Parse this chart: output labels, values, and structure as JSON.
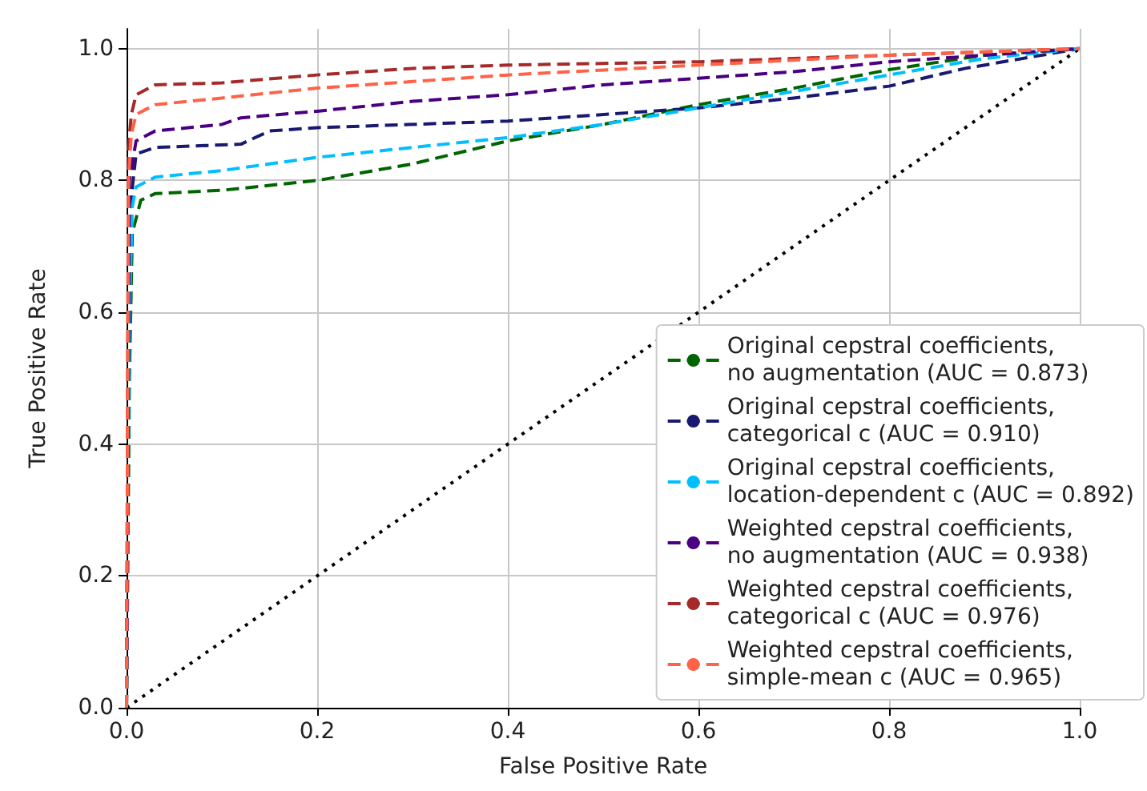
{
  "chart_data": {
    "type": "line",
    "xlabel": "False Positive Rate",
    "ylabel": "True Positive Rate",
    "xlim": [
      0,
      1
    ],
    "ylim": [
      0,
      1.03
    ],
    "xticks": [
      {
        "value": 0,
        "label": "0.0"
      },
      {
        "value": 0.2,
        "label": "0.2"
      },
      {
        "value": 0.4,
        "label": "0.4"
      },
      {
        "value": 0.6,
        "label": "0.6"
      },
      {
        "value": 0.8,
        "label": "0.8"
      },
      {
        "value": 1,
        "label": "1.0"
      }
    ],
    "yticks": [
      {
        "value": 0,
        "label": "0.0"
      },
      {
        "value": 0.2,
        "label": "0.2"
      },
      {
        "value": 0.4,
        "label": "0.4"
      },
      {
        "value": 0.6,
        "label": "0.6"
      },
      {
        "value": 0.8,
        "label": "0.8"
      },
      {
        "value": 1,
        "label": "1.0"
      }
    ],
    "grid": true,
    "legend": "bottom right",
    "marker": "none",
    "series": [
      {
        "name": "Original cepstral coefficients,\nno augmentation (AUC = 0.873)",
        "color": "#006400",
        "line_style": "dashed",
        "x": [
          0,
          0.003,
          0.006,
          0.015,
          0.03,
          0.1,
          0.2,
          0.3,
          0.4,
          0.5,
          0.6,
          0.7,
          0.8,
          0.9,
          1
        ],
        "values": [
          0,
          0.5,
          0.72,
          0.77,
          0.78,
          0.785,
          0.8,
          0.825,
          0.86,
          0.885,
          0.915,
          0.94,
          0.968,
          0.99,
          1
        ]
      },
      {
        "name": "Original cepstral coefficients,\ncategorical c (AUC = 0.910)",
        "color": "#191970",
        "line_style": "dashed",
        "x": [
          0,
          0.003,
          0.01,
          0.03,
          0.12,
          0.15,
          0.2,
          0.4,
          0.6,
          0.7,
          0.8,
          0.88,
          1
        ],
        "values": [
          0,
          0.75,
          0.84,
          0.85,
          0.855,
          0.875,
          0.88,
          0.89,
          0.91,
          0.925,
          0.943,
          0.97,
          1
        ]
      },
      {
        "name": "Original cepstral coefficients,\nlocation-dependent c (AUC = 0.892)",
        "color": "#00bfff",
        "line_style": "dashed",
        "x": [
          0,
          0.003,
          0.006,
          0.01,
          0.03,
          0.1,
          0.2,
          0.3,
          0.4,
          0.5,
          0.6,
          0.7,
          0.8,
          0.9,
          1
        ],
        "values": [
          0,
          0.6,
          0.76,
          0.79,
          0.805,
          0.815,
          0.835,
          0.85,
          0.865,
          0.885,
          0.91,
          0.935,
          0.96,
          0.985,
          1
        ]
      },
      {
        "name": "Weighted cepstral coefficients,\nno augmentation (AUC = 0.938)",
        "color": "#4b0082",
        "line_style": "dashed",
        "x": [
          0,
          0.003,
          0.01,
          0.03,
          0.1,
          0.12,
          0.2,
          0.3,
          0.4,
          0.5,
          0.6,
          0.7,
          0.8,
          0.9,
          1
        ],
        "values": [
          0,
          0.8,
          0.86,
          0.875,
          0.885,
          0.895,
          0.905,
          0.92,
          0.93,
          0.945,
          0.955,
          0.965,
          0.98,
          0.99,
          1
        ]
      },
      {
        "name": "Weighted cepstral coefficients,\ncategorical c (AUC = 0.976)",
        "color": "#a52a2a",
        "line_style": "dashed",
        "x": [
          0,
          0.002,
          0.005,
          0.01,
          0.03,
          0.1,
          0.2,
          0.3,
          0.4,
          0.6,
          0.8,
          1
        ],
        "values": [
          0,
          0.85,
          0.9,
          0.93,
          0.945,
          0.948,
          0.96,
          0.97,
          0.975,
          0.98,
          0.99,
          1
        ]
      },
      {
        "name": "Weighted cepstral coefficients,\nsimple-mean c (AUC = 0.965)",
        "color": "#ff6347",
        "line_style": "dashed",
        "x": [
          0,
          0.002,
          0.005,
          0.01,
          0.03,
          0.1,
          0.2,
          0.3,
          0.4,
          0.6,
          0.8,
          1
        ],
        "values": [
          0,
          0.8,
          0.87,
          0.9,
          0.915,
          0.925,
          0.94,
          0.95,
          0.96,
          0.975,
          0.99,
          1
        ]
      },
      {
        "color": "#000000",
        "line_style": "dotted",
        "x": [
          0,
          1
        ],
        "values": [
          0,
          1
        ]
      }
    ]
  }
}
